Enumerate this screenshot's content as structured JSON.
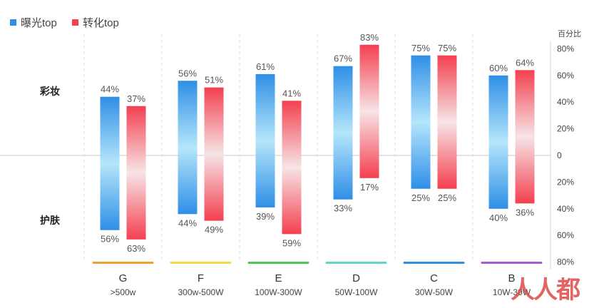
{
  "chart_data": {
    "type": "bar",
    "legend": [
      {
        "name": "曝光top",
        "color": "#2f8fe6"
      },
      {
        "name": "转化top",
        "color": "#f4404f"
      }
    ],
    "ylabel": "百分比",
    "y_ticks": [
      "80%",
      "60%",
      "40%",
      "20%",
      "0",
      "20%",
      "40%",
      "60%",
      "80%"
    ],
    "ylim": [
      -80,
      80
    ],
    "row_labels": {
      "top": "彩妆",
      "bottom": "护肤"
    },
    "categories": [
      {
        "label": "G",
        "sublabel": ">500w",
        "color": "#f0a030"
      },
      {
        "label": "F",
        "sublabel": "300w-500W",
        "color": "#f2d94a"
      },
      {
        "label": "E",
        "sublabel": "100W-300W",
        "color": "#4cc94c"
      },
      {
        "label": "D",
        "sublabel": "50W-100W",
        "color": "#5fd6c8"
      },
      {
        "label": "C",
        "sublabel": "30W-50W",
        "color": "#2f8ee6"
      },
      {
        "label": "B",
        "sublabel": "10W-30W",
        "color": "#a25bd9"
      }
    ],
    "series": [
      {
        "name": "曝光top",
        "top_values": [
          44,
          56,
          61,
          67,
          75,
          60
        ],
        "bottom_values": [
          56,
          44,
          39,
          33,
          25,
          40
        ],
        "top_labels": [
          "44%",
          "56%",
          "61%",
          "67%",
          "75%",
          "60%"
        ],
        "bottom_labels": [
          "56%",
          "44%",
          "39%",
          "33%",
          "25%",
          "40%"
        ],
        "color_end": "#2f8fe6",
        "color_mid": "#b5e6fb"
      },
      {
        "name": "转化top",
        "top_values": [
          37,
          51,
          41,
          83,
          75,
          64
        ],
        "bottom_values": [
          63,
          49,
          59,
          17,
          25,
          36
        ],
        "top_labels": [
          "37%",
          "51%",
          "41%",
          "83%",
          "75%",
          "64%"
        ],
        "bottom_labels": [
          "63%",
          "49%",
          "59%",
          "17%",
          "25%",
          "36%"
        ],
        "color_end": "#f4404f",
        "color_mid": "#f6e4e6"
      }
    ],
    "grid": false,
    "legend_position": "top-left"
  },
  "watermark": {
    "text": "人人都是产品经理"
  }
}
